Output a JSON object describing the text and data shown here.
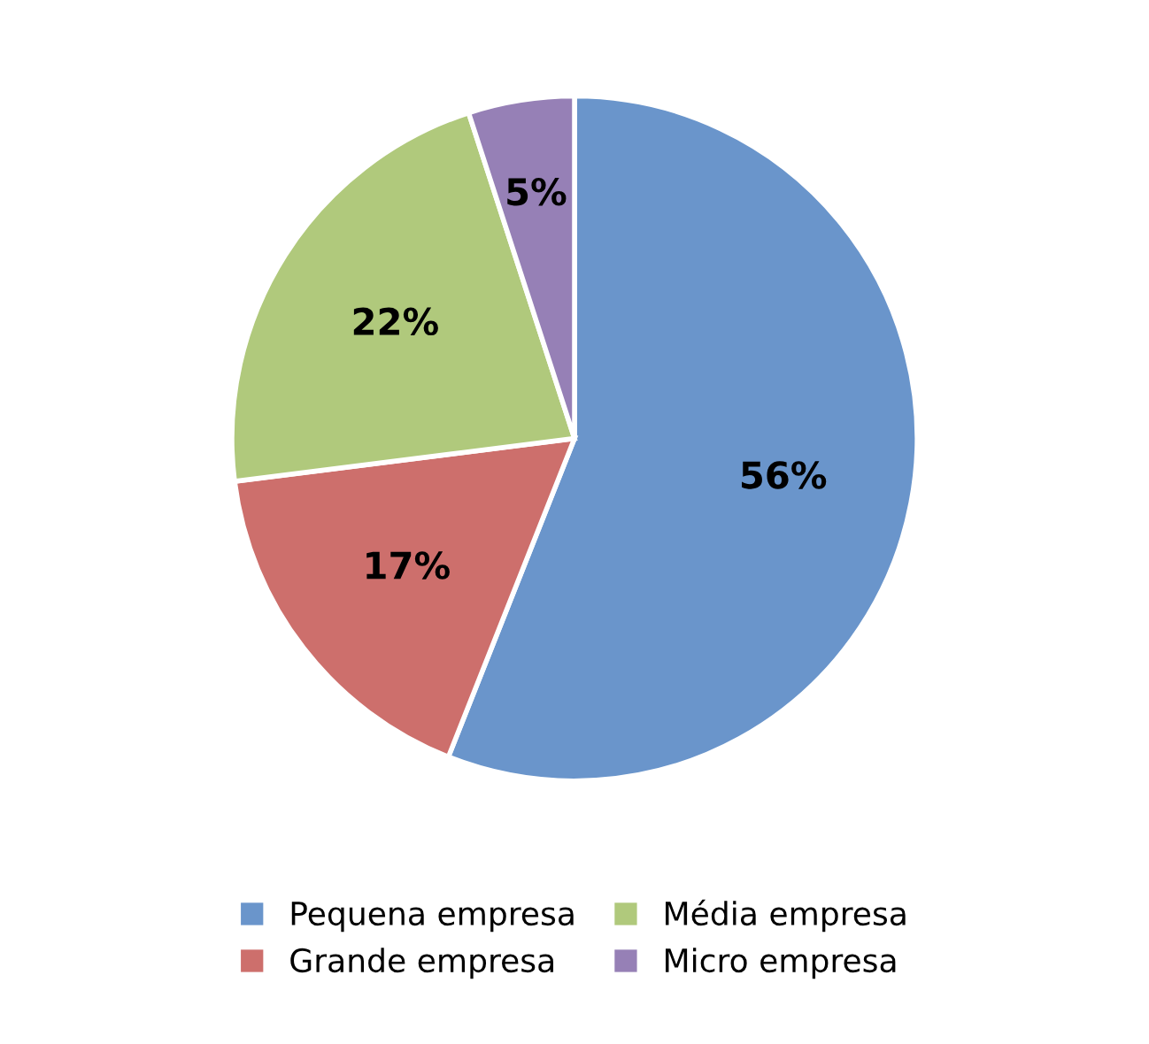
{
  "chart_data": {
    "type": "pie",
    "categories": [
      "Pequena empresa",
      "Grande empresa",
      "Média empresa",
      "Micro empresa"
    ],
    "values": [
      56,
      17,
      22,
      5
    ],
    "colors": [
      "#6a95cb",
      "#cd6f6c",
      "#b0c97c",
      "#9680b6"
    ],
    "value_labels": [
      "56%",
      "17%",
      "22%",
      "5%"
    ],
    "legend": "bottom"
  }
}
